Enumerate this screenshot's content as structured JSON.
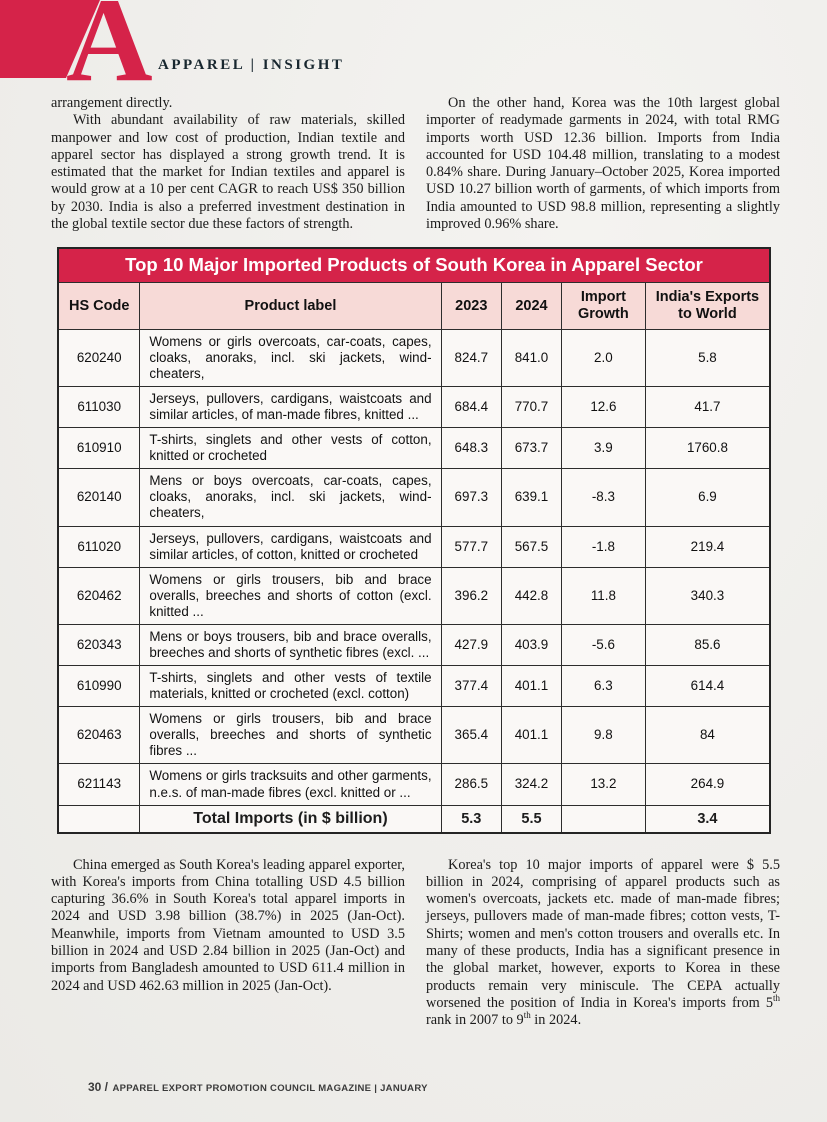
{
  "header": {
    "brand": "APPAREL | INSIGHT",
    "logo_letter": "A"
  },
  "colors": {
    "accent_red": "#d52349",
    "header_pink": "#f7dad7",
    "page_bg": "#f0efec"
  },
  "intro": {
    "left_para_1": "arrangement directly.",
    "left_para_2": "With abundant availability of raw materials, skilled manpower and low cost of production, Indian textile and apparel sector has displayed a strong growth trend. It is estimated that the market for Indian textiles and apparel is would grow at a 10 per cent CAGR to reach US$ 350 billion by 2030.  India is also a preferred investment destination in the global textile sector due these factors of strength.",
    "right_para": "On the other hand, Korea was the 10th largest global importer of readymade garments in 2024, with total RMG imports worth USD 12.36 billion. Imports from India accounted for USD 104.48 million, translating to a modest 0.84% share. During January–October 2025, Korea imported USD 10.27 billion worth of garments, of which imports from India amounted to USD 98.8 million, representing a slightly improved 0.96% share."
  },
  "table": {
    "title": "Top 10 Major Imported Products of South Korea in Apparel Sector",
    "columns": [
      "HS Code",
      "Product label",
      "2023",
      "2024",
      "Import Growth",
      "India's Exports to World"
    ],
    "rows": [
      {
        "hs_code": "620240",
        "label": "Womens or girls overcoats, car-coats, capes, cloaks, anoraks, incl. ski jackets, wind-cheaters,",
        "y2023": "824.7",
        "y2024": "841.0",
        "growth": "2.0",
        "india_exports": "5.8"
      },
      {
        "hs_code": "611030",
        "label": "Jerseys, pullovers, cardigans, waistcoats and similar articles, of man-made fibres, knitted ...",
        "y2023": "684.4",
        "y2024": "770.7",
        "growth": "12.6",
        "india_exports": "41.7"
      },
      {
        "hs_code": "610910",
        "label": "T-shirts, singlets and other vests of cotton, knitted or crocheted",
        "y2023": "648.3",
        "y2024": "673.7",
        "growth": "3.9",
        "india_exports": "1760.8"
      },
      {
        "hs_code": "620140",
        "label": "Mens or boys overcoats, car-coats, capes, cloaks, anoraks, incl. ski jackets, wind-cheaters,",
        "y2023": "697.3",
        "y2024": "639.1",
        "growth": "-8.3",
        "india_exports": "6.9"
      },
      {
        "hs_code": "611020",
        "label": "Jerseys, pullovers, cardigans, waistcoats and similar articles, of cotton, knitted or crocheted",
        "y2023": "577.7",
        "y2024": "567.5",
        "growth": "-1.8",
        "india_exports": "219.4"
      },
      {
        "hs_code": "620462",
        "label": "Womens or girls trousers, bib and brace overalls, breeches and shorts of cotton (excl. knitted ...",
        "y2023": "396.2",
        "y2024": "442.8",
        "growth": "11.8",
        "india_exports": "340.3"
      },
      {
        "hs_code": "620343",
        "label": "Mens or boys trousers, bib and brace overalls, breeches and shorts of synthetic fibres (excl. ...",
        "y2023": "427.9",
        "y2024": "403.9",
        "growth": "-5.6",
        "india_exports": "85.6"
      },
      {
        "hs_code": "610990",
        "label": "T-shirts, singlets and other vests of textile materials, knitted or crocheted (excl. cotton)",
        "y2023": "377.4",
        "y2024": "401.1",
        "growth": "6.3",
        "india_exports": "614.4"
      },
      {
        "hs_code": "620463",
        "label": "Womens or girls trousers, bib and brace overalls, breeches and shorts of synthetic fibres ...",
        "y2023": "365.4",
        "y2024": "401.1",
        "growth": "9.8",
        "india_exports": "84"
      },
      {
        "hs_code": "621143",
        "label": "Womens or girls tracksuits and other garments, n.e.s. of man-made fibres (excl. knitted or ...",
        "y2023": "286.5",
        "y2024": "324.2",
        "growth": "13.2",
        "india_exports": "264.9"
      }
    ],
    "total_row": {
      "label": "Total Imports (in $ billion)",
      "y2023": "5.3",
      "y2024": "5.5",
      "growth": "",
      "india_exports": "3.4"
    }
  },
  "analysis": {
    "left_para": "China emerged as South Korea's leading apparel exporter, with Korea's imports from China totalling USD 4.5 billion capturing 36.6% in South Korea's total apparel imports in 2024 and USD 3.98 billion (38.7%) in 2025 (Jan-Oct). Meanwhile, imports from Vietnam amounted to USD 3.5 billion in 2024 and USD 2.84 billion in 2025 (Jan-Oct) and imports from Bangladesh amounted to USD 611.4 million in 2024 and USD 462.63 million in 2025 (Jan-Oct).",
    "right_para_segments": [
      {
        "t": "Korea's top 10 major imports of apparel were $ 5.5 billion in 2024, comprising of apparel products such as women's overcoats, jackets etc. made of man-made fibres; jerseys, pullovers made of man-made fibres; cotton vests, T-Shirts; women and men's cotton trousers and overalls etc. In many of these products, India has a significant presence in the global market, however, exports to Korea in these products remain very miniscule. The CEPA actually worsened the position of India in Korea's imports from 5"
      },
      {
        "t": "th",
        "sup": true
      },
      {
        "t": " rank in 2007 to 9"
      },
      {
        "t": "th",
        "sup": true
      },
      {
        "t": " in 2024."
      }
    ]
  },
  "footer": {
    "page_number": "30 /",
    "magazine": "APPAREL EXPORT PROMOTION COUNCIL MAGAZINE | JANUARY"
  }
}
